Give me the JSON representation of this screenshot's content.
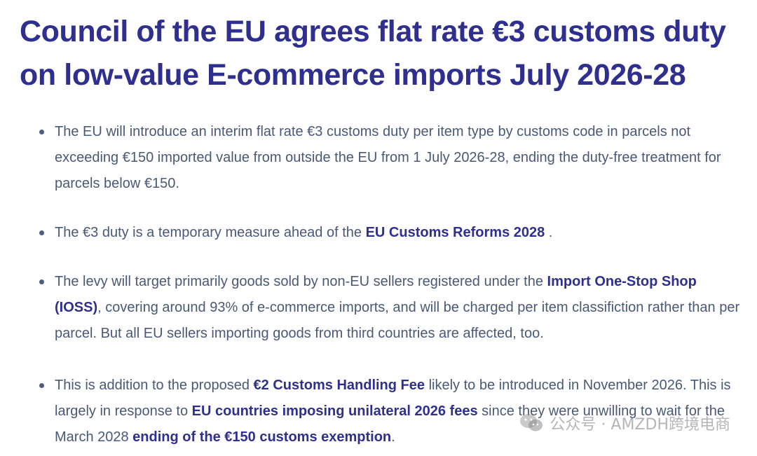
{
  "article": {
    "title_line1": "Council of the EU agrees flat rate €3 customs duty",
    "title_line2": "on low-value E-commerce imports July 2026-28",
    "bullets": [
      {
        "text": "The EU will introduce an interim flat rate €3 customs duty per item type by customs code in parcels not exceeding €150 imported value from outside the EU from 1 July 2026-28, ending the duty-free treatment for parcels below €150."
      },
      {
        "pre": "The €3 duty is a temporary measure ahead of the ",
        "link": "EU Customs Reforms 2028",
        "post": " ."
      },
      {
        "pre": "The levy will target primarily goods sold by non-EU sellers registered under the ",
        "link": "Import One-Stop Shop (IOSS)",
        "post": ", covering around 93% of e-commerce imports, and will be charged per item classifiction rather than per parcel. But all EU sellers importing goods from third countries are affected, too."
      },
      {
        "pre": "This is addition to the proposed ",
        "link1": "€2 Customs Handling Fee",
        "mid1": " likely to be introduced in November 2026. This is largely in response to ",
        "link2": "EU countries imposing unilateral 2026 fees",
        "mid2": " since they were unwilling to wait for the March 2028 ",
        "link3": "ending of the €150 customs exemption",
        "post": "."
      }
    ]
  },
  "watermark": {
    "text": "公众号 · AMZDH跨境电商",
    "icon": "wechat-logo-icon"
  },
  "colors": {
    "title": "#2e2f8f",
    "body_text": "#4a5878",
    "link": "#2e2f8f",
    "bullet_dot": "#4f5d7e"
  }
}
